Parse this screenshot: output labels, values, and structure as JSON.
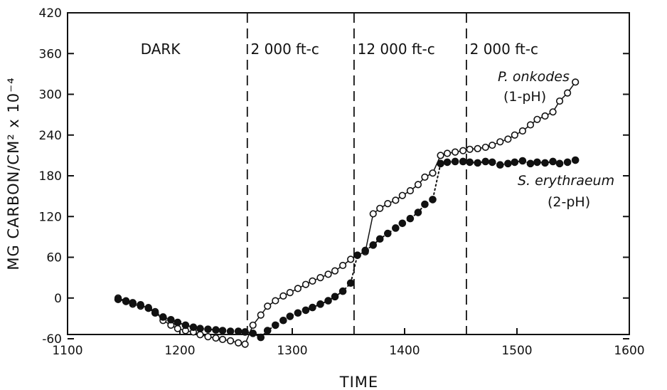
{
  "chart_data": {
    "type": "line",
    "title": "",
    "xlabel": "TIME",
    "ylabel": "MG CARBON/CM² x 10⁻⁴",
    "xlim": [
      1100,
      1600
    ],
    "ylim": [
      -90,
      420
    ],
    "xticks": [
      "1100",
      "1200",
      "1300",
      "1400",
      "1500",
      "1600"
    ],
    "yticks": [
      "-60",
      "0",
      "60",
      "120",
      "180",
      "240",
      "300",
      "360",
      "420"
    ],
    "grid": false,
    "phases": [
      {
        "label": "DARK",
        "start": 1145,
        "end": 1260
      },
      {
        "label": "2 000 ft-c",
        "start": 1260,
        "end": 1355
      },
      {
        "label": "12 000 ft-c",
        "start": 1355,
        "end": 1455
      },
      {
        "label": "2 000 ft-c",
        "start": 1455,
        "end": 1555
      }
    ],
    "phase_boundaries": [
      1260,
      1355,
      1455
    ],
    "series": [
      {
        "name": "P. onkodes",
        "label": "(1-pH)",
        "marker": "open-circle",
        "line": "solid",
        "x": [
          1145,
          1152,
          1158,
          1165,
          1172,
          1178,
          1185,
          1192,
          1198,
          1205,
          1212,
          1218,
          1225,
          1232,
          1238,
          1245,
          1252,
          1258,
          1265,
          1272,
          1278,
          1285,
          1292,
          1298,
          1305,
          1312,
          1318,
          1325,
          1332,
          1338,
          1345,
          1352,
          1358,
          1365,
          1372,
          1378,
          1385,
          1392,
          1398,
          1405,
          1412,
          1418,
          1425,
          1432,
          1438,
          1445,
          1452,
          1458,
          1465,
          1472,
          1478,
          1485,
          1492,
          1498,
          1505,
          1512,
          1518,
          1525,
          1532,
          1538,
          1545,
          1552
        ],
        "y": [
          0,
          -4,
          -9,
          -12,
          -14,
          -20,
          -33,
          -40,
          -45,
          -48,
          -50,
          -54,
          -57,
          -59,
          -61,
          -63,
          -66,
          -68,
          -40,
          -25,
          -12,
          -4,
          3,
          8,
          14,
          20,
          25,
          30,
          35,
          40,
          48,
          57,
          63,
          68,
          124,
          132,
          139,
          144,
          151,
          158,
          167,
          178,
          184,
          210,
          213,
          215,
          217,
          219,
          220,
          222,
          225,
          230,
          234,
          240,
          246,
          255,
          263,
          268,
          274,
          290,
          302,
          318
        ]
      },
      {
        "name": "S. erythraeum",
        "label": "(2-pH)",
        "marker": "filled-circle",
        "line": "dotted",
        "x": [
          1145,
          1152,
          1158,
          1165,
          1172,
          1178,
          1185,
          1192,
          1198,
          1205,
          1212,
          1218,
          1225,
          1232,
          1238,
          1245,
          1252,
          1258,
          1265,
          1272,
          1278,
          1285,
          1292,
          1298,
          1305,
          1312,
          1318,
          1325,
          1332,
          1338,
          1345,
          1352,
          1358,
          1365,
          1372,
          1378,
          1385,
          1392,
          1398,
          1405,
          1412,
          1418,
          1425,
          1432,
          1438,
          1445,
          1452,
          1458,
          1465,
          1472,
          1478,
          1485,
          1492,
          1498,
          1505,
          1512,
          1518,
          1525,
          1532,
          1538,
          1545,
          1552
        ],
        "y": [
          -2,
          -5,
          -7,
          -10,
          -15,
          -22,
          -28,
          -32,
          -36,
          -40,
          -43,
          -45,
          -46,
          -47,
          -48,
          -49,
          -49,
          -50,
          -52,
          -58,
          -48,
          -40,
          -33,
          -27,
          -22,
          -18,
          -14,
          -9,
          -4,
          2,
          10,
          22,
          63,
          70,
          78,
          87,
          95,
          103,
          110,
          117,
          126,
          138,
          145,
          198,
          200,
          201,
          201,
          200,
          199,
          201,
          200,
          196,
          198,
          200,
          202,
          198,
          200,
          199,
          201,
          198,
          200,
          203
        ]
      }
    ]
  }
}
